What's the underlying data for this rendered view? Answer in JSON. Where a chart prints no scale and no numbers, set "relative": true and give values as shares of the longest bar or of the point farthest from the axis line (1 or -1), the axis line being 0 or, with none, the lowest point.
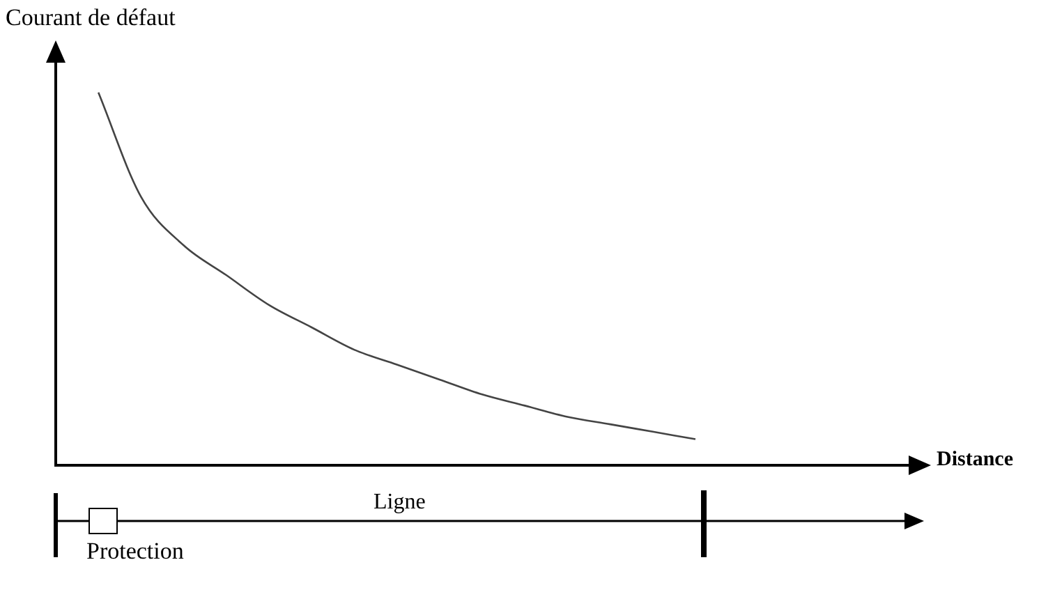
{
  "chart_data": {
    "type": "line",
    "ylabel": "Courant de défaut",
    "xlabel": "Distance",
    "relative": true,
    "grid": false,
    "legend": false,
    "marker": "none",
    "line_style": "solid",
    "categories": [
      null,
      null,
      null,
      null,
      null,
      null,
      null,
      null,
      null,
      null,
      null,
      null,
      null,
      null,
      null,
      null,
      null,
      null,
      null,
      null,
      null
    ],
    "series": [
      {
        "color": "#444444",
        "values": [
          null,
          1,
          0.72,
          0.59,
          0.51,
          0.43,
          0.37,
          0.31,
          0.27,
          0.23,
          0.19,
          0.16,
          0.13,
          0.11,
          0.09,
          0.07,
          null,
          null,
          null,
          null,
          null
        ]
      }
    ],
    "annotations": [
      "Ligne",
      "Protection"
    ]
  }
}
